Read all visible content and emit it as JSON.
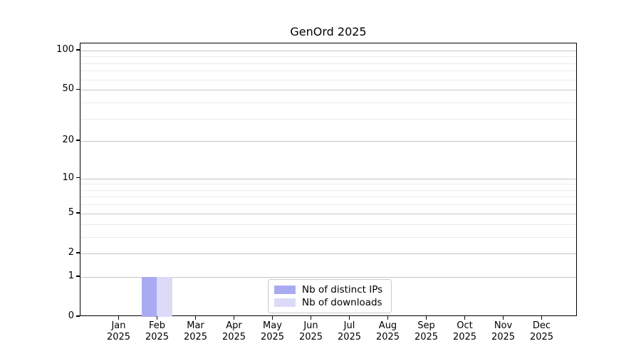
{
  "chart_data": {
    "type": "bar",
    "title": "GenOrd 2025",
    "x_labels": [
      {
        "month": "Jan",
        "year": "2025"
      },
      {
        "month": "Feb",
        "year": "2025"
      },
      {
        "month": "Mar",
        "year": "2025"
      },
      {
        "month": "Apr",
        "year": "2025"
      },
      {
        "month": "May",
        "year": "2025"
      },
      {
        "month": "Jun",
        "year": "2025"
      },
      {
        "month": "Jul",
        "year": "2025"
      },
      {
        "month": "Aug",
        "year": "2025"
      },
      {
        "month": "Sep",
        "year": "2025"
      },
      {
        "month": "Oct",
        "year": "2025"
      },
      {
        "month": "Nov",
        "year": "2025"
      },
      {
        "month": "Dec",
        "year": "2025"
      }
    ],
    "series": [
      {
        "name": "Nb of distinct IPs",
        "color": "#aaaaf2",
        "values": [
          0,
          1,
          0,
          0,
          0,
          0,
          0,
          0,
          0,
          0,
          0,
          0
        ]
      },
      {
        "name": "Nb of downloads",
        "color": "#dbdbf8",
        "values": [
          0,
          1,
          0,
          0,
          0,
          0,
          0,
          0,
          0,
          0,
          0,
          0
        ]
      }
    ],
    "y_scale": "log10(1+value)",
    "y_major_ticks": [
      0,
      1,
      2,
      5,
      10,
      20,
      50,
      100
    ],
    "y_minor_gridlines": [
      3,
      4,
      6,
      7,
      8,
      9,
      30,
      40,
      60,
      70,
      80,
      90
    ],
    "ylim": [
      0,
      113
    ],
    "grid": true,
    "legend_position": "lower center"
  },
  "colors": {
    "grid_major": "#c6c6c6",
    "grid_minor": "#ebebeb",
    "spine": "#000000",
    "background": "#ffffff",
    "text": "#000000"
  }
}
